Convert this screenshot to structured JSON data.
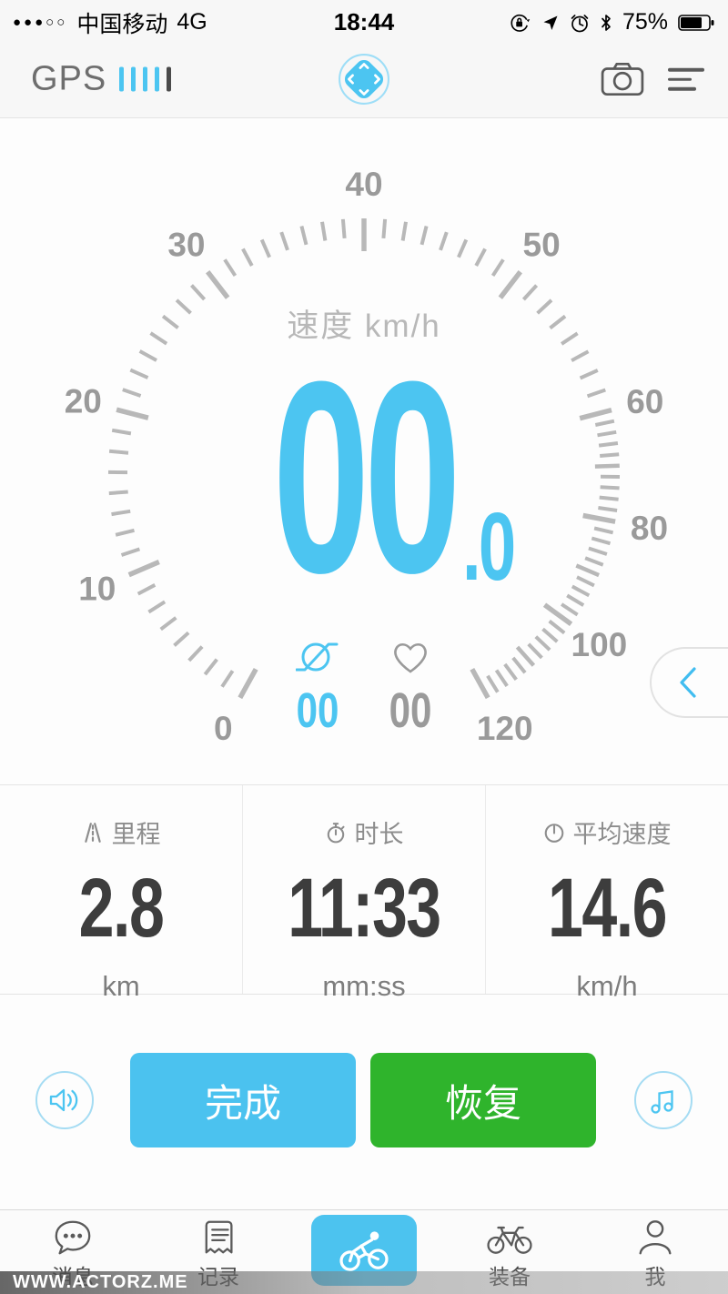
{
  "colors": {
    "accent_blue": "#4cc5f1",
    "button_blue": "#4bc2ef",
    "button_green": "#2fb42c",
    "active_tab_blue": "#4cc3ef"
  },
  "status_bar": {
    "signal_dots_filled": 3,
    "signal_dots_total": 5,
    "carrier": "中国移动",
    "network": "4G",
    "time": "18:44",
    "battery_text": "75%",
    "battery_percent": 75
  },
  "header": {
    "gps_label": "GPS",
    "signal_bars_active": 4,
    "signal_bars_total": 5
  },
  "gauge": {
    "title": "速度 km/h",
    "speed_main": "00",
    "speed_decimal": ".0",
    "labels": [
      "0",
      "10",
      "20",
      "30",
      "40",
      "50",
      "60",
      "80",
      "100",
      "120"
    ],
    "angles": [
      241,
      203.2,
      165.4,
      127.7,
      90,
      52.3,
      14.5,
      -10.7,
      -35.9,
      -61
    ],
    "cadence_value": "00",
    "heart_value": "00"
  },
  "stats": {
    "items": [
      {
        "icon": "road-icon",
        "label": "里程",
        "value": "2.8",
        "unit": "km"
      },
      {
        "icon": "stopwatch-icon",
        "label": "时长",
        "value": "11:33",
        "unit": "mm:ss"
      },
      {
        "icon": "avg-speed-icon",
        "label": "平均速度",
        "value": "14.6",
        "unit": "km/h"
      }
    ]
  },
  "actions": {
    "finish_label": "完成",
    "resume_label": "恢复"
  },
  "tabs": {
    "items": [
      {
        "label": "消息",
        "icon": "chat-bubble-icon"
      },
      {
        "label": "记录",
        "icon": "records-icon"
      },
      {
        "label": "",
        "icon": "cyclist-icon",
        "active": true
      },
      {
        "label": "装备",
        "icon": "bicycle-icon"
      },
      {
        "label": "我",
        "icon": "person-icon"
      }
    ]
  },
  "watermark": {
    "text": "WWW.ACTORZ.ME"
  },
  "icons": {
    "status_bar": [
      "rotation-lock-icon",
      "location-arrow-icon",
      "alarm-clock-icon",
      "bluetooth-icon",
      "battery-icon"
    ],
    "header": [
      "compass-dpad-icon",
      "camera-icon",
      "menu-icon"
    ],
    "gauge": [
      "cadence-icon",
      "heart-icon",
      "chevron-left-icon"
    ],
    "stats": [
      "road-icon",
      "stopwatch-icon",
      "avg-speed-icon"
    ],
    "actions": [
      "speaker-icon",
      "music-note-icon"
    ],
    "tab_bar": [
      "chat-bubble-icon",
      "records-icon",
      "cyclist-icon",
      "bicycle-icon",
      "person-icon"
    ]
  }
}
